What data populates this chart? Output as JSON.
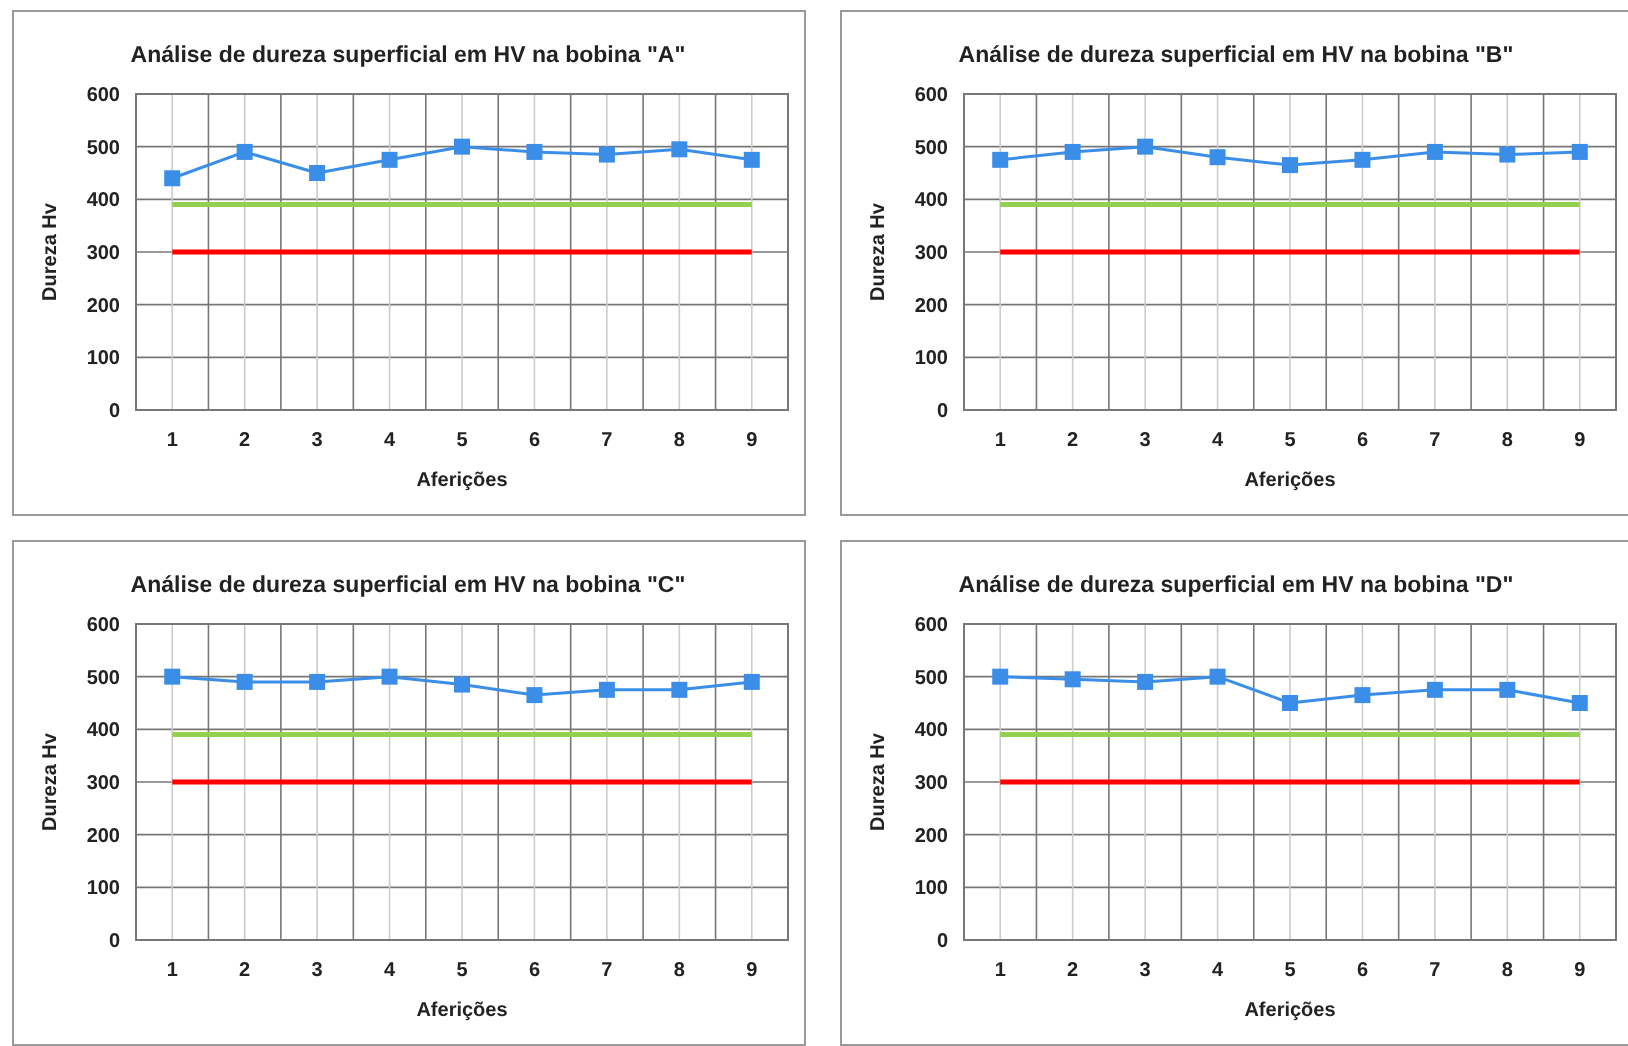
{
  "chart_data": [
    {
      "type": "line",
      "title": "Análise de dureza superficial em HV na bobina \"A\"",
      "xlabel": "Aferições",
      "ylabel": "Dureza Hv",
      "categories": [
        "1",
        "2",
        "3",
        "4",
        "5",
        "6",
        "7",
        "8",
        "9"
      ],
      "ylim": [
        0,
        600
      ],
      "yticks": [
        0,
        100,
        200,
        300,
        400,
        500,
        600
      ],
      "grid": true,
      "marker": "square",
      "series": [
        {
          "color": "#3b8ee8",
          "values": [
            440,
            490,
            450,
            475,
            500,
            490,
            485,
            495,
            475
          ]
        },
        {
          "color": "#92d050",
          "marker": "none",
          "values": [
            390,
            390,
            390,
            390,
            390,
            390,
            390,
            390,
            390
          ]
        },
        {
          "color": "#ff0000",
          "marker": "none",
          "values": [
            300,
            300,
            300,
            300,
            300,
            300,
            300,
            300,
            300
          ]
        }
      ]
    },
    {
      "type": "line",
      "title": "Análise de dureza superficial em HV na bobina \"B\"",
      "xlabel": "Aferições",
      "ylabel": "Dureza Hv",
      "categories": [
        "1",
        "2",
        "3",
        "4",
        "5",
        "6",
        "7",
        "8",
        "9"
      ],
      "ylim": [
        0,
        600
      ],
      "yticks": [
        0,
        100,
        200,
        300,
        400,
        500,
        600
      ],
      "grid": true,
      "marker": "square",
      "series": [
        {
          "color": "#3b8ee8",
          "values": [
            475,
            490,
            500,
            480,
            465,
            475,
            490,
            485,
            490
          ]
        },
        {
          "color": "#92d050",
          "marker": "none",
          "values": [
            390,
            390,
            390,
            390,
            390,
            390,
            390,
            390,
            390
          ]
        },
        {
          "color": "#ff0000",
          "marker": "none",
          "values": [
            300,
            300,
            300,
            300,
            300,
            300,
            300,
            300,
            300
          ]
        }
      ]
    },
    {
      "type": "line",
      "title": "Análise de dureza superficial em HV na bobina \"C\"",
      "xlabel": "Aferições",
      "ylabel": "Dureza Hv",
      "categories": [
        "1",
        "2",
        "3",
        "4",
        "5",
        "6",
        "7",
        "8",
        "9"
      ],
      "ylim": [
        0,
        600
      ],
      "yticks": [
        0,
        100,
        200,
        300,
        400,
        500,
        600
      ],
      "grid": true,
      "marker": "square",
      "series": [
        {
          "color": "#3b8ee8",
          "values": [
            500,
            490,
            490,
            500,
            485,
            465,
            475,
            475,
            490
          ]
        },
        {
          "color": "#92d050",
          "marker": "none",
          "values": [
            390,
            390,
            390,
            390,
            390,
            390,
            390,
            390,
            390
          ]
        },
        {
          "color": "#ff0000",
          "marker": "none",
          "values": [
            300,
            300,
            300,
            300,
            300,
            300,
            300,
            300,
            300
          ]
        }
      ]
    },
    {
      "type": "line",
      "title": "Análise de dureza superficial em HV na bobina \"D\"",
      "xlabel": "Aferições",
      "ylabel": "Dureza Hv",
      "categories": [
        "1",
        "2",
        "3",
        "4",
        "5",
        "6",
        "7",
        "8",
        "9"
      ],
      "ylim": [
        0,
        600
      ],
      "yticks": [
        0,
        100,
        200,
        300,
        400,
        500,
        600
      ],
      "grid": true,
      "marker": "square",
      "series": [
        {
          "color": "#3b8ee8",
          "values": [
            500,
            495,
            490,
            500,
            450,
            465,
            475,
            475,
            450
          ]
        },
        {
          "color": "#92d050",
          "marker": "none",
          "values": [
            390,
            390,
            390,
            390,
            390,
            390,
            390,
            390,
            390
          ]
        },
        {
          "color": "#ff0000",
          "marker": "none",
          "values": [
            300,
            300,
            300,
            300,
            300,
            300,
            300,
            300,
            300
          ]
        }
      ]
    }
  ]
}
